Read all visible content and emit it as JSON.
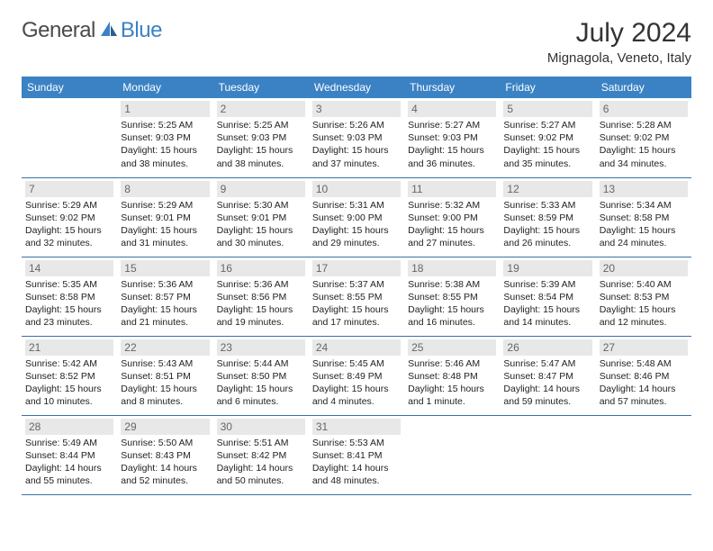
{
  "brand": {
    "general": "General",
    "blue": "Blue"
  },
  "title": "July 2024",
  "location": "Mignagola, Veneto, Italy",
  "weekdays": [
    "Sunday",
    "Monday",
    "Tuesday",
    "Wednesday",
    "Thursday",
    "Friday",
    "Saturday"
  ],
  "colors": {
    "header_bg": "#3b82c4",
    "header_text": "#ffffff",
    "daynum_bg": "#e8e8e8",
    "daynum_text": "#666666",
    "border": "#3b6fa8",
    "logo_gray": "#4a4a4a",
    "logo_blue": "#3b82c4"
  },
  "start_blank": 1,
  "days": [
    {
      "n": "1",
      "sunrise": "Sunrise: 5:25 AM",
      "sunset": "Sunset: 9:03 PM",
      "daylight": "Daylight: 15 hours and 38 minutes."
    },
    {
      "n": "2",
      "sunrise": "Sunrise: 5:25 AM",
      "sunset": "Sunset: 9:03 PM",
      "daylight": "Daylight: 15 hours and 38 minutes."
    },
    {
      "n": "3",
      "sunrise": "Sunrise: 5:26 AM",
      "sunset": "Sunset: 9:03 PM",
      "daylight": "Daylight: 15 hours and 37 minutes."
    },
    {
      "n": "4",
      "sunrise": "Sunrise: 5:27 AM",
      "sunset": "Sunset: 9:03 PM",
      "daylight": "Daylight: 15 hours and 36 minutes."
    },
    {
      "n": "5",
      "sunrise": "Sunrise: 5:27 AM",
      "sunset": "Sunset: 9:02 PM",
      "daylight": "Daylight: 15 hours and 35 minutes."
    },
    {
      "n": "6",
      "sunrise": "Sunrise: 5:28 AM",
      "sunset": "Sunset: 9:02 PM",
      "daylight": "Daylight: 15 hours and 34 minutes."
    },
    {
      "n": "7",
      "sunrise": "Sunrise: 5:29 AM",
      "sunset": "Sunset: 9:02 PM",
      "daylight": "Daylight: 15 hours and 32 minutes."
    },
    {
      "n": "8",
      "sunrise": "Sunrise: 5:29 AM",
      "sunset": "Sunset: 9:01 PM",
      "daylight": "Daylight: 15 hours and 31 minutes."
    },
    {
      "n": "9",
      "sunrise": "Sunrise: 5:30 AM",
      "sunset": "Sunset: 9:01 PM",
      "daylight": "Daylight: 15 hours and 30 minutes."
    },
    {
      "n": "10",
      "sunrise": "Sunrise: 5:31 AM",
      "sunset": "Sunset: 9:00 PM",
      "daylight": "Daylight: 15 hours and 29 minutes."
    },
    {
      "n": "11",
      "sunrise": "Sunrise: 5:32 AM",
      "sunset": "Sunset: 9:00 PM",
      "daylight": "Daylight: 15 hours and 27 minutes."
    },
    {
      "n": "12",
      "sunrise": "Sunrise: 5:33 AM",
      "sunset": "Sunset: 8:59 PM",
      "daylight": "Daylight: 15 hours and 26 minutes."
    },
    {
      "n": "13",
      "sunrise": "Sunrise: 5:34 AM",
      "sunset": "Sunset: 8:58 PM",
      "daylight": "Daylight: 15 hours and 24 minutes."
    },
    {
      "n": "14",
      "sunrise": "Sunrise: 5:35 AM",
      "sunset": "Sunset: 8:58 PM",
      "daylight": "Daylight: 15 hours and 23 minutes."
    },
    {
      "n": "15",
      "sunrise": "Sunrise: 5:36 AM",
      "sunset": "Sunset: 8:57 PM",
      "daylight": "Daylight: 15 hours and 21 minutes."
    },
    {
      "n": "16",
      "sunrise": "Sunrise: 5:36 AM",
      "sunset": "Sunset: 8:56 PM",
      "daylight": "Daylight: 15 hours and 19 minutes."
    },
    {
      "n": "17",
      "sunrise": "Sunrise: 5:37 AM",
      "sunset": "Sunset: 8:55 PM",
      "daylight": "Daylight: 15 hours and 17 minutes."
    },
    {
      "n": "18",
      "sunrise": "Sunrise: 5:38 AM",
      "sunset": "Sunset: 8:55 PM",
      "daylight": "Daylight: 15 hours and 16 minutes."
    },
    {
      "n": "19",
      "sunrise": "Sunrise: 5:39 AM",
      "sunset": "Sunset: 8:54 PM",
      "daylight": "Daylight: 15 hours and 14 minutes."
    },
    {
      "n": "20",
      "sunrise": "Sunrise: 5:40 AM",
      "sunset": "Sunset: 8:53 PM",
      "daylight": "Daylight: 15 hours and 12 minutes."
    },
    {
      "n": "21",
      "sunrise": "Sunrise: 5:42 AM",
      "sunset": "Sunset: 8:52 PM",
      "daylight": "Daylight: 15 hours and 10 minutes."
    },
    {
      "n": "22",
      "sunrise": "Sunrise: 5:43 AM",
      "sunset": "Sunset: 8:51 PM",
      "daylight": "Daylight: 15 hours and 8 minutes."
    },
    {
      "n": "23",
      "sunrise": "Sunrise: 5:44 AM",
      "sunset": "Sunset: 8:50 PM",
      "daylight": "Daylight: 15 hours and 6 minutes."
    },
    {
      "n": "24",
      "sunrise": "Sunrise: 5:45 AM",
      "sunset": "Sunset: 8:49 PM",
      "daylight": "Daylight: 15 hours and 4 minutes."
    },
    {
      "n": "25",
      "sunrise": "Sunrise: 5:46 AM",
      "sunset": "Sunset: 8:48 PM",
      "daylight": "Daylight: 15 hours and 1 minute."
    },
    {
      "n": "26",
      "sunrise": "Sunrise: 5:47 AM",
      "sunset": "Sunset: 8:47 PM",
      "daylight": "Daylight: 14 hours and 59 minutes."
    },
    {
      "n": "27",
      "sunrise": "Sunrise: 5:48 AM",
      "sunset": "Sunset: 8:46 PM",
      "daylight": "Daylight: 14 hours and 57 minutes."
    },
    {
      "n": "28",
      "sunrise": "Sunrise: 5:49 AM",
      "sunset": "Sunset: 8:44 PM",
      "daylight": "Daylight: 14 hours and 55 minutes."
    },
    {
      "n": "29",
      "sunrise": "Sunrise: 5:50 AM",
      "sunset": "Sunset: 8:43 PM",
      "daylight": "Daylight: 14 hours and 52 minutes."
    },
    {
      "n": "30",
      "sunrise": "Sunrise: 5:51 AM",
      "sunset": "Sunset: 8:42 PM",
      "daylight": "Daylight: 14 hours and 50 minutes."
    },
    {
      "n": "31",
      "sunrise": "Sunrise: 5:53 AM",
      "sunset": "Sunset: 8:41 PM",
      "daylight": "Daylight: 14 hours and 48 minutes."
    }
  ]
}
